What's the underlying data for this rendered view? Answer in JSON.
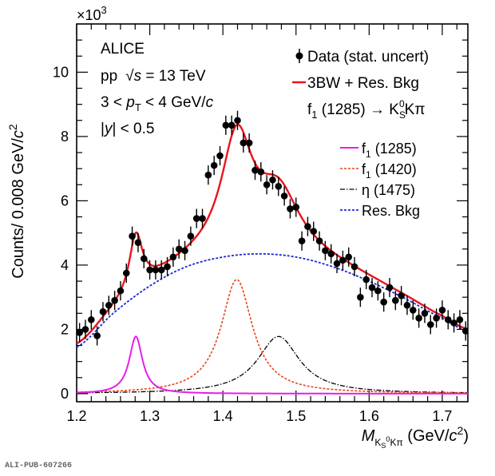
{
  "chart_data": {
    "type": "line",
    "xlim": [
      1.2,
      1.735
    ],
    "ylim": [
      -0.25,
      11.5
    ],
    "y_multiplier": "×10",
    "y_multiplier_exp": "3",
    "xticks": [
      1.2,
      1.3,
      1.4,
      1.5,
      1.6,
      1.7
    ],
    "xtick_labels": [
      "1.2",
      "1.3",
      "1.4",
      "1.5",
      "1.6",
      "1.7"
    ],
    "yticks": [
      0,
      2,
      4,
      6,
      8,
      10
    ],
    "ytick_labels": [
      "0",
      "2",
      "4",
      "6",
      "8",
      "10"
    ],
    "ylabel": {
      "pre": "Counts/ 0.008 GeV/",
      "c": "c",
      "exp": "2"
    },
    "xlabel": {
      "M": "M",
      "sub": "K",
      "subsub": "S",
      "subsup": "0",
      "sub2": "Kπ",
      "units": " (GeV/",
      "c": "c",
      "exp": "2",
      "close": ")"
    },
    "annotations": {
      "experiment": "ALICE",
      "system_pre": "pp",
      "system_sqrt": "√",
      "system_s": "s",
      "system_post": " = 13 TeV",
      "pt_pre": "3 < ",
      "pt_p": "p",
      "pt_sub": "T",
      "pt_post": " < 4 GeV/",
      "pt_c": "c",
      "y_pre": "|",
      "y_var": "y",
      "y_post": "| < 0.5"
    },
    "legend_top": {
      "position": "top-right",
      "data": "Data (stat. uncert)",
      "fit": "3BW + Res. Bkg",
      "decay_f": "f",
      "decay_sub": "1",
      "decay_mass": " (1285) → K",
      "decay_k_sub": "S",
      "decay_k_sup": "0",
      "decay_end": "Kπ"
    },
    "legend_bottom": {
      "f1285_f": "f",
      "f1285_sub": "1",
      "f1285_mass": " (1285)",
      "f1420_f": "f",
      "f1420_sub": "1",
      "f1420_mass": " (1420)",
      "eta": "η (1475)",
      "resbkg": "Res. Bkg"
    },
    "colors": {
      "data": "#000000",
      "fit": "#e8141c",
      "f1285": "#e81ee8",
      "f1420": "#e8441c",
      "eta1475": "#000000",
      "resbkg": "#1c28d4"
    },
    "data_points": {
      "x": [
        1.204,
        1.212,
        1.22,
        1.228,
        1.236,
        1.244,
        1.252,
        1.26,
        1.268,
        1.276,
        1.284,
        1.292,
        1.3,
        1.308,
        1.316,
        1.324,
        1.332,
        1.34,
        1.348,
        1.356,
        1.364,
        1.372,
        1.38,
        1.388,
        1.396,
        1.404,
        1.412,
        1.42,
        1.428,
        1.436,
        1.444,
        1.452,
        1.46,
        1.468,
        1.476,
        1.484,
        1.492,
        1.5,
        1.508,
        1.516,
        1.524,
        1.532,
        1.54,
        1.548,
        1.556,
        1.564,
        1.572,
        1.58,
        1.588,
        1.596,
        1.604,
        1.612,
        1.62,
        1.628,
        1.636,
        1.644,
        1.652,
        1.66,
        1.668,
        1.676,
        1.684,
        1.692,
        1.7,
        1.708,
        1.716,
        1.724,
        1.732
      ],
      "y": [
        1.9,
        2.0,
        2.3,
        1.8,
        2.55,
        2.75,
        2.9,
        3.2,
        3.75,
        4.9,
        4.7,
        4.2,
        3.85,
        3.85,
        3.85,
        3.95,
        4.25,
        4.5,
        4.45,
        4.9,
        5.45,
        5.45,
        6.8,
        7.1,
        7.4,
        8.35,
        8.35,
        8.5,
        7.8,
        7.8,
        6.95,
        6.9,
        6.5,
        6.65,
        6.45,
        6.15,
        5.75,
        5.8,
        4.75,
        5.2,
        5.05,
        4.75,
        4.45,
        4.35,
        4.05,
        4.15,
        4.25,
        3.95,
        3.0,
        3.55,
        3.3,
        3.2,
        2.85,
        3.3,
        2.9,
        3.05,
        2.75,
        2.6,
        2.35,
        2.5,
        2.15,
        2.35,
        2.6,
        2.3,
        2.2,
        2.3,
        1.95
      ],
      "err": 0.3
    },
    "curves": {
      "resbkg": {
        "x": [
          1.2,
          1.25,
          1.3,
          1.35,
          1.4,
          1.45,
          1.5,
          1.55,
          1.6,
          1.65,
          1.7,
          1.735
        ],
        "y": [
          1.45,
          2.5,
          3.35,
          3.95,
          4.25,
          4.35,
          4.25,
          3.95,
          3.5,
          2.95,
          2.35,
          1.95
        ]
      },
      "f1285": {
        "mass": 1.281,
        "width": 0.022,
        "peak": 1.78
      },
      "f1420": {
        "mass": 1.419,
        "width": 0.052,
        "peak": 3.55
      },
      "eta1475": {
        "mass": 1.476,
        "width": 0.07,
        "peak": 1.78
      }
    }
  }
}
